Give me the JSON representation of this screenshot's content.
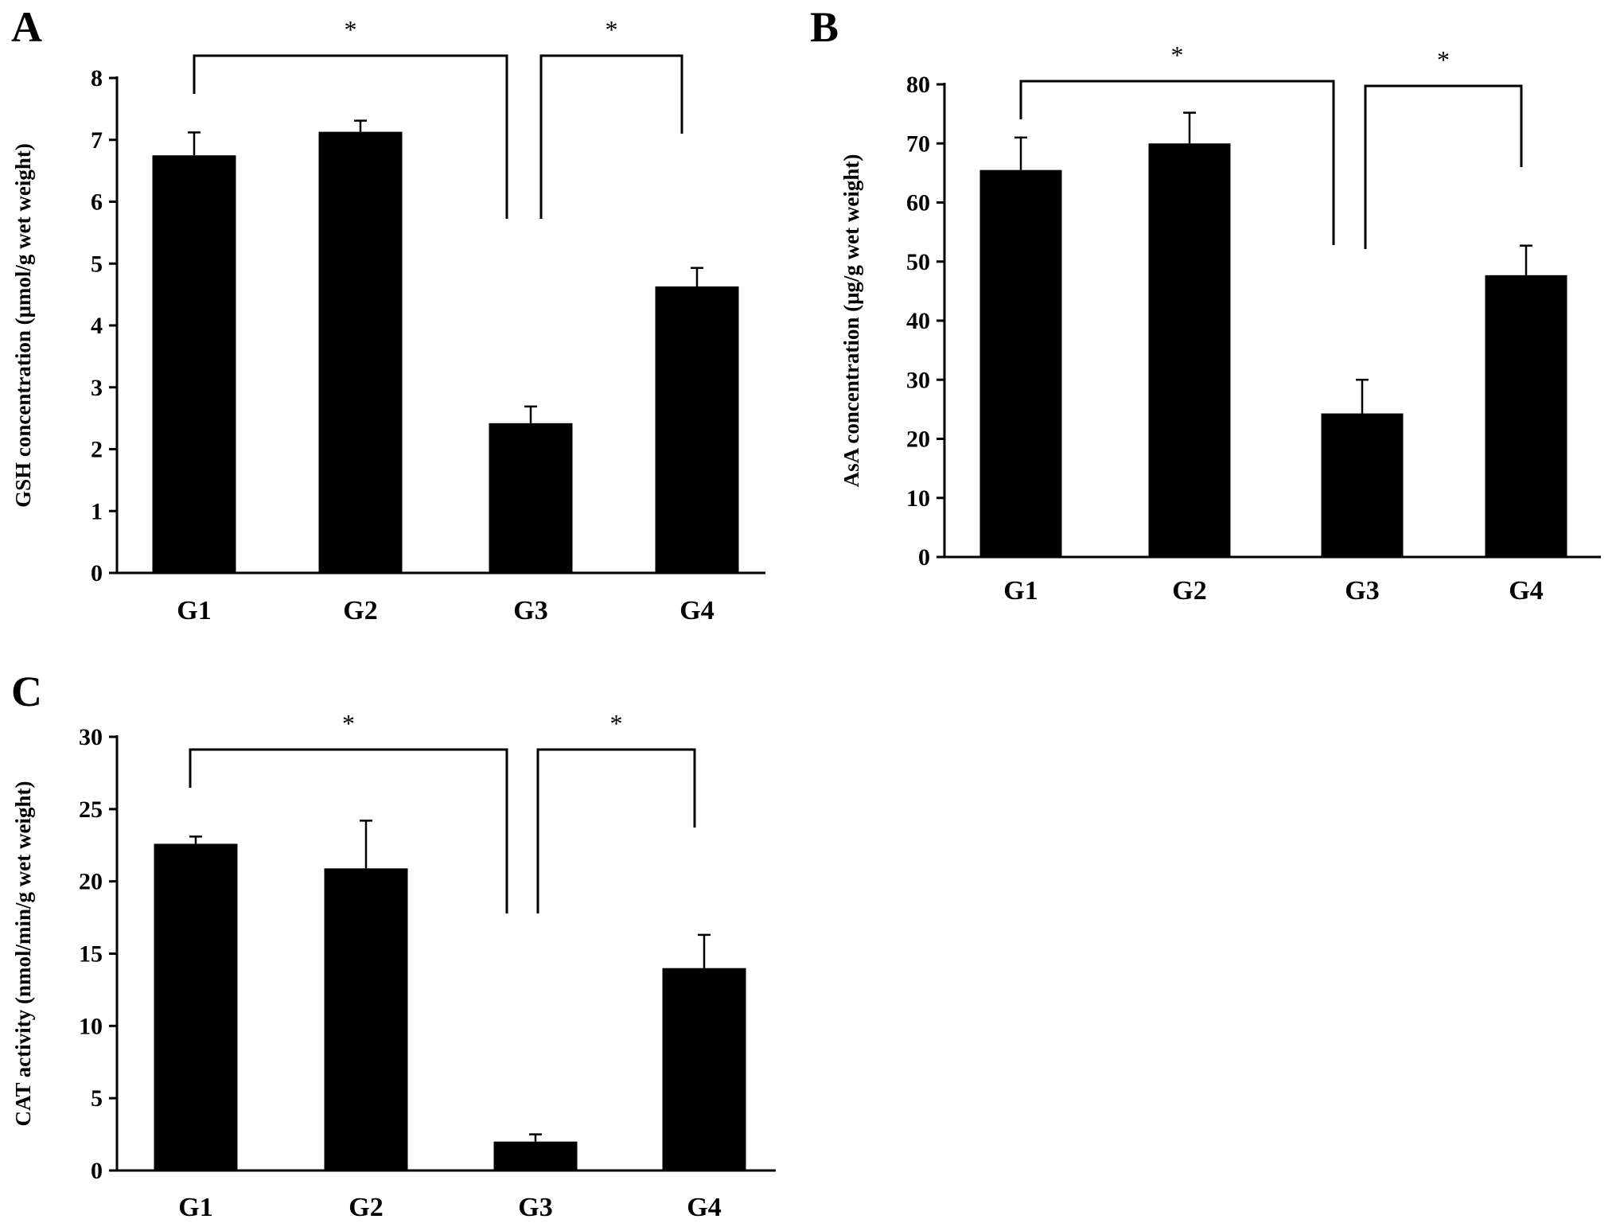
{
  "chart_data": [
    {
      "panel": "A",
      "type": "bar",
      "categories": [
        "G1",
        "G2",
        "G3",
        "G4"
      ],
      "values": [
        6.75,
        7.13,
        2.42,
        4.63
      ],
      "errors": [
        0.37,
        0.18,
        0.27,
        0.3
      ],
      "ylabel": "GSH concentration (μmol/g wet weight)",
      "ylim": [
        0,
        8
      ],
      "yticks": [
        "0",
        "1",
        "2",
        "3",
        "4",
        "5",
        "6",
        "7",
        "8"
      ],
      "bar_color": "#000000",
      "significance": [
        {
          "from": "G1",
          "to": "G3",
          "label": "*"
        },
        {
          "from": "G3",
          "to": "G4",
          "label": "*"
        }
      ]
    },
    {
      "panel": "B",
      "type": "bar",
      "categories": [
        "G1",
        "G2",
        "G3",
        "G4"
      ],
      "values": [
        65.5,
        70.0,
        24.3,
        47.7
      ],
      "errors": [
        5.5,
        5.2,
        5.7,
        5.0
      ],
      "ylabel": "AsA concentration (μg/g wet weight)",
      "ylim": [
        0,
        80
      ],
      "yticks": [
        "0",
        "10",
        "20",
        "30",
        "40",
        "50",
        "60",
        "70",
        "80"
      ],
      "bar_color": "#000000",
      "significance": [
        {
          "from": "G1",
          "to": "G3",
          "label": "*"
        },
        {
          "from": "G3",
          "to": "G4",
          "label": "*"
        }
      ]
    },
    {
      "panel": "C",
      "type": "bar",
      "categories": [
        "G1",
        "G2",
        "G3",
        "G4"
      ],
      "values": [
        22.6,
        20.9,
        2.0,
        14.0
      ],
      "errors": [
        0.5,
        3.3,
        0.5,
        2.3
      ],
      "ylabel": "CAT activity (nmol/min/g wet weight)",
      "ylim": [
        0,
        30
      ],
      "yticks": [
        "0",
        "5",
        "10",
        "15",
        "20",
        "25",
        "30"
      ],
      "bar_color": "#000000",
      "significance": [
        {
          "from": "G1",
          "to": "G3",
          "label": "*"
        },
        {
          "from": "G3",
          "to": "G4",
          "label": "*"
        }
      ]
    }
  ]
}
